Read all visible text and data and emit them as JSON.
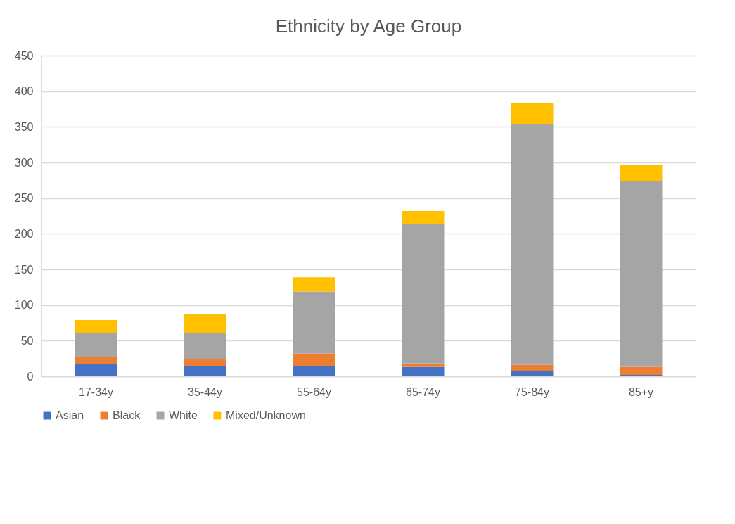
{
  "chart_data": {
    "type": "bar",
    "title": "Ethnicity by Age Group",
    "stacked": true,
    "categories": [
      "17-34y",
      "35-44y",
      "55-64y",
      "65-74y",
      "75-84y",
      "85+y"
    ],
    "series": [
      {
        "name": "Asian",
        "color": "#4472c4",
        "values": [
          17,
          14,
          14,
          13,
          7,
          2
        ]
      },
      {
        "name": "Black",
        "color": "#ed7d31",
        "values": [
          10,
          10,
          18,
          5,
          9,
          11
        ]
      },
      {
        "name": "White",
        "color": "#a5a5a5",
        "values": [
          34,
          37,
          87,
          196,
          338,
          261
        ]
      },
      {
        "name": "Mixed/Unknown",
        "color": "#ffc000",
        "values": [
          18,
          26,
          20,
          18,
          30,
          22
        ]
      }
    ],
    "ylim": [
      0,
      450
    ],
    "yticks": [
      0,
      50,
      100,
      150,
      200,
      250,
      300,
      350,
      400,
      450
    ],
    "grid": "y",
    "legend": "bottom"
  }
}
